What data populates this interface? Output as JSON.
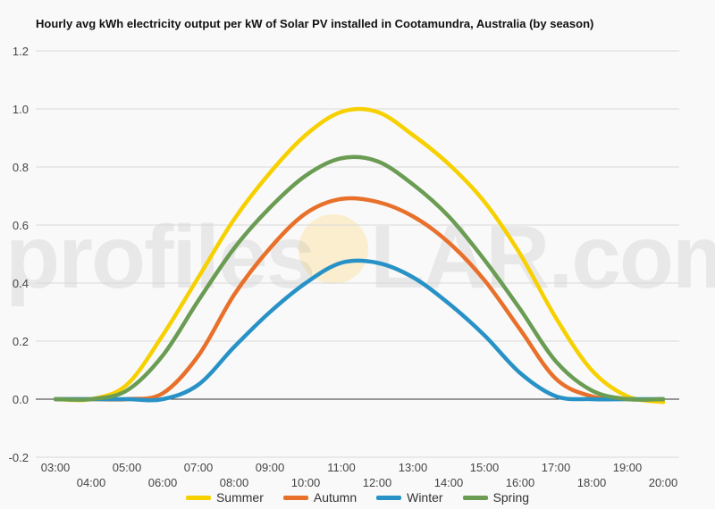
{
  "chart_data": {
    "type": "line",
    "title": "Hourly avg kWh electricity output per kW of Solar PV installed in Cootamundra, Australia (by season)",
    "xlabel": "",
    "ylabel": "",
    "ylim": [
      -0.2,
      1.2
    ],
    "yticks": [
      "1.2",
      "1.0",
      "0.8",
      "0.6",
      "0.4",
      "0.2",
      "0.0",
      "-0.2"
    ],
    "x": [
      "03:00",
      "04:00",
      "05:00",
      "06:00",
      "07:00",
      "08:00",
      "09:00",
      "10:00",
      "11:00",
      "12:00",
      "13:00",
      "14:00",
      "15:00",
      "16:00",
      "17:00",
      "18:00",
      "19:00",
      "20:00"
    ],
    "grid": true,
    "legend_position": "bottom",
    "series": [
      {
        "name": "Summer",
        "color": "#f7d000",
        "values": [
          0.0,
          0.0,
          0.05,
          0.22,
          0.42,
          0.62,
          0.78,
          0.91,
          0.99,
          0.99,
          0.91,
          0.81,
          0.68,
          0.5,
          0.28,
          0.1,
          0.01,
          -0.01
        ]
      },
      {
        "name": "Autumn",
        "color": "#e8702a",
        "values": [
          0.0,
          0.0,
          0.0,
          0.02,
          0.15,
          0.36,
          0.52,
          0.64,
          0.69,
          0.68,
          0.63,
          0.54,
          0.41,
          0.24,
          0.07,
          0.01,
          0.0,
          0.0
        ]
      },
      {
        "name": "Winter",
        "color": "#2892c6",
        "values": [
          0.0,
          0.0,
          0.0,
          0.0,
          0.05,
          0.18,
          0.3,
          0.4,
          0.47,
          0.47,
          0.42,
          0.33,
          0.22,
          0.09,
          0.01,
          0.0,
          0.0,
          0.0
        ]
      },
      {
        "name": "Spring",
        "color": "#6a9c53",
        "values": [
          0.0,
          0.0,
          0.03,
          0.15,
          0.34,
          0.52,
          0.66,
          0.77,
          0.83,
          0.82,
          0.74,
          0.63,
          0.48,
          0.31,
          0.13,
          0.03,
          0.0,
          0.0
        ]
      }
    ]
  },
  "watermark": {
    "left": "profiles",
    "right": "LAR.com"
  }
}
